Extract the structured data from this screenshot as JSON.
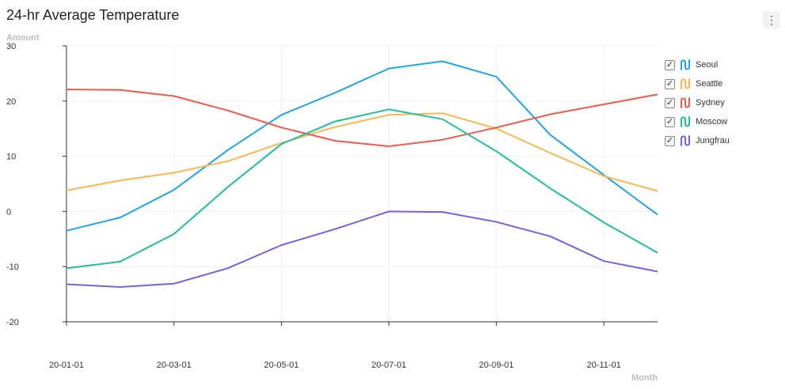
{
  "header": {
    "menu_icon": "kebab-menu-icon"
  },
  "chart_data": {
    "type": "line",
    "title": "24-hr Average Temperature",
    "xlabel": "Month",
    "ylabel": "Amount",
    "ylim": [
      -20,
      30
    ],
    "yticks": [
      30,
      20,
      10,
      0,
      -10,
      -20
    ],
    "x": [
      "20-01-01",
      "20-02-01",
      "20-03-01",
      "20-04-01",
      "20-05-01",
      "20-06-01",
      "20-07-01",
      "20-08-01",
      "20-09-01",
      "20-10-01",
      "20-11-01",
      "20-12-01"
    ],
    "xticks": [
      "20-01-01",
      "20-03-01",
      "20-05-01",
      "20-07-01",
      "20-09-01",
      "20-11-01"
    ],
    "grid": true,
    "legend_position": "right",
    "series": [
      {
        "name": "Seoul",
        "color": "#1ea5ef",
        "checked": true,
        "values": [
          -3.5,
          -1.1,
          3.9,
          11.1,
          17.5,
          21.5,
          25.9,
          27.2,
          24.4,
          13.9,
          6.6,
          -0.6
        ]
      },
      {
        "name": "Seattle",
        "color": "#fdb64e",
        "checked": true,
        "values": [
          3.8,
          5.6,
          7.0,
          9.1,
          12.4,
          15.3,
          17.5,
          17.8,
          15.0,
          10.6,
          6.4,
          3.7
        ]
      },
      {
        "name": "Sydney",
        "color": "#f15a4a",
        "checked": true,
        "values": [
          22.1,
          22.0,
          20.9,
          18.3,
          15.2,
          12.8,
          11.8,
          13.0,
          15.2,
          17.6,
          19.4,
          21.2
        ]
      },
      {
        "name": "Moscow",
        "color": "#1fbfa0",
        "checked": true,
        "values": [
          -10.3,
          -9.1,
          -4.1,
          4.4,
          12.2,
          16.3,
          18.5,
          16.7,
          10.9,
          4.2,
          -2.0,
          -7.5
        ]
      },
      {
        "name": "Jungfrau",
        "color": "#7a5ee8",
        "checked": true,
        "values": [
          -13.2,
          -13.7,
          -13.1,
          -10.3,
          -6.1,
          -3.2,
          0.0,
          -0.1,
          -1.9,
          -4.5,
          -9.0,
          -10.9
        ]
      }
    ]
  }
}
